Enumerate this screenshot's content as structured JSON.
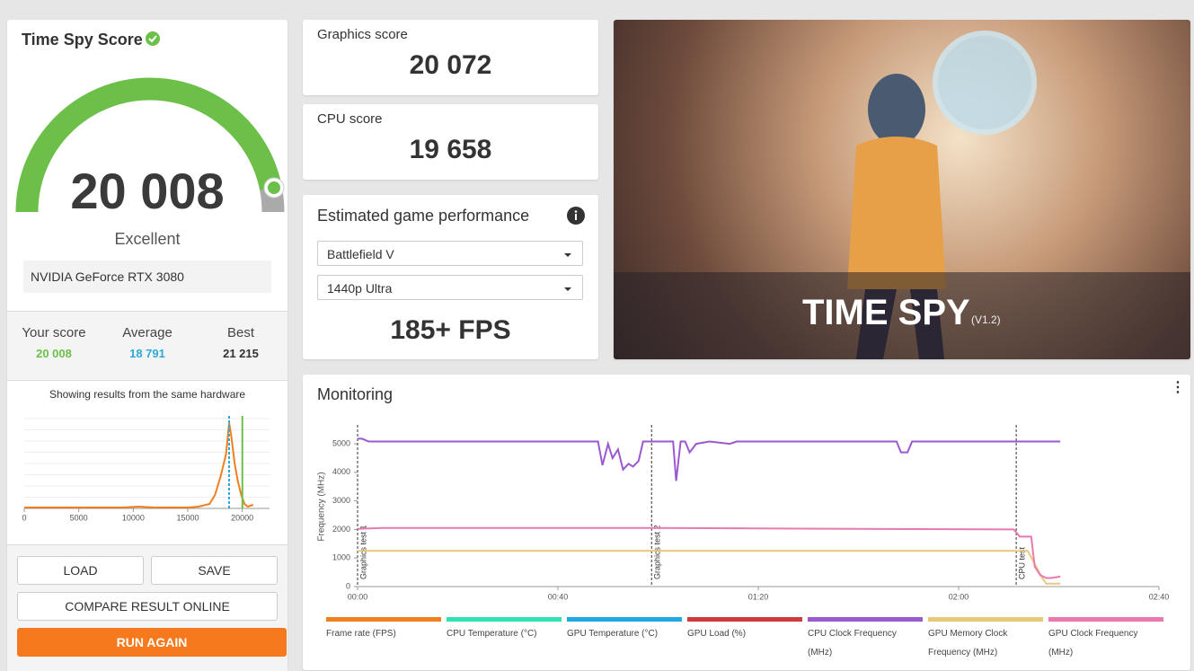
{
  "score": {
    "title": "Time Spy Score",
    "value": "20 008",
    "rating": "Excellent",
    "gpu": "NVIDIA GeForce RTX 3080",
    "stats": [
      {
        "label": "Your score",
        "value": "20 008",
        "color": "#6cc04a"
      },
      {
        "label": "Average",
        "value": "18 791",
        "color": "#2fa8d6"
      },
      {
        "label": "Best",
        "value": "21 215",
        "color": "#333333"
      }
    ],
    "note": "Showing results from the same hardware"
  },
  "histogram": {
    "type": "line",
    "color": "#f07f1e",
    "xlim": [
      0,
      22500
    ],
    "ylim": [
      0,
      100
    ],
    "xticks": [
      0,
      5000,
      10000,
      15000,
      20000
    ],
    "x": [
      0,
      3000,
      6000,
      9000,
      10500,
      12000,
      15000,
      16000,
      17000,
      17500,
      18000,
      18500,
      18800,
      19000,
      19300,
      19600,
      19900,
      20200,
      20500,
      21000
    ],
    "values": [
      1,
      1,
      1,
      1,
      2,
      1,
      1,
      2,
      5,
      15,
      35,
      60,
      95,
      80,
      50,
      30,
      15,
      5,
      2,
      4
    ],
    "markers": [
      {
        "x": 18791,
        "color": "#2fa8d6",
        "dashed": true
      },
      {
        "x": 20008,
        "color": "#6cc04a",
        "dashed": false
      }
    ]
  },
  "buttons": {
    "load": "LOAD",
    "save": "SAVE",
    "compare": "COMPARE RESULT ONLINE",
    "run": "RUN AGAIN"
  },
  "graphics": {
    "label": "Graphics score",
    "value": "20 072"
  },
  "cpu": {
    "label": "CPU score",
    "value": "19 658"
  },
  "game": {
    "title": "Estimated game performance",
    "game": "Battlefield V",
    "preset": "1440p Ultra",
    "fps": "185+ FPS"
  },
  "banner": {
    "title": "TIME SPY",
    "version": "(V1.2)"
  },
  "monitoring": {
    "type": "line",
    "title": "Monitoring",
    "y_label": "Frequency (MHz)",
    "xlim": [
      0,
      160
    ],
    "ylim": [
      0,
      5600
    ],
    "xticks": [
      {
        "value": 0,
        "label": "00:00"
      },
      {
        "value": 40,
        "label": "00:40"
      },
      {
        "value": 80,
        "label": "01:20"
      },
      {
        "value": 120,
        "label": "02:00"
      },
      {
        "value": 160,
        "label": "02:40"
      }
    ],
    "yticks": [
      0,
      1000,
      2000,
      3000,
      4000,
      5000
    ],
    "phases": [
      {
        "x": 0,
        "label": "Graphics test 1"
      },
      {
        "x": 58.7,
        "label": "Graphics test 2"
      },
      {
        "x": 131.5,
        "label": "CPU test"
      }
    ],
    "series": [
      {
        "name": "Frame rate (FPS)",
        "color": "#f07f1e",
        "x": [],
        "values": []
      },
      {
        "name": "CPU Temperature (°C)",
        "color": "#2de3b4",
        "x": [],
        "values": []
      },
      {
        "name": "GPU Temperature (°C)",
        "color": "#1fa8e8",
        "x": [],
        "values": []
      },
      {
        "name": "GPU Load (%)",
        "color": "#d03a3a",
        "x": [],
        "values": []
      },
      {
        "name": "CPU Clock Frequency (MHz)",
        "color": "#9b59d0",
        "x": [
          0,
          0.9,
          2.2,
          48,
          48.9,
          50,
          50.9,
          52,
          53,
          54.1,
          55,
          56.1,
          57,
          63,
          63.6,
          64.5,
          65.4,
          66.3,
          67.6,
          70.3,
          74.3,
          75.7,
          107.6,
          108.5,
          109.8,
          110.7,
          140.3
        ],
        "values": [
          5180,
          5180,
          5080,
          5080,
          4250,
          5000,
          4500,
          4800,
          4100,
          4300,
          4200,
          4400,
          5080,
          5080,
          3700,
          5080,
          5080,
          4700,
          5000,
          5080,
          5000,
          5080,
          5080,
          4700,
          4700,
          5080,
          5080
        ]
      },
      {
        "name": "GPU Memory Clock Frequency (MHz)",
        "color": "#e8c87a",
        "x": [
          0,
          131.5,
          133.8,
          136.7,
          137.5,
          140.3
        ],
        "values": [
          1250,
          1250,
          1250,
          300,
          100,
          100
        ]
      },
      {
        "name": "GPU Clock Frequency (MHz)",
        "color": "#e87ab0",
        "x": [
          0,
          5,
          60,
          100,
          131,
          131.5,
          132.2,
          134.5,
          135.2,
          136.3,
          137.5,
          138.4,
          140.3
        ],
        "values": [
          2020,
          2050,
          2050,
          2020,
          2000,
          1900,
          1750,
          1750,
          700,
          400,
          300,
          300,
          350
        ]
      }
    ]
  }
}
